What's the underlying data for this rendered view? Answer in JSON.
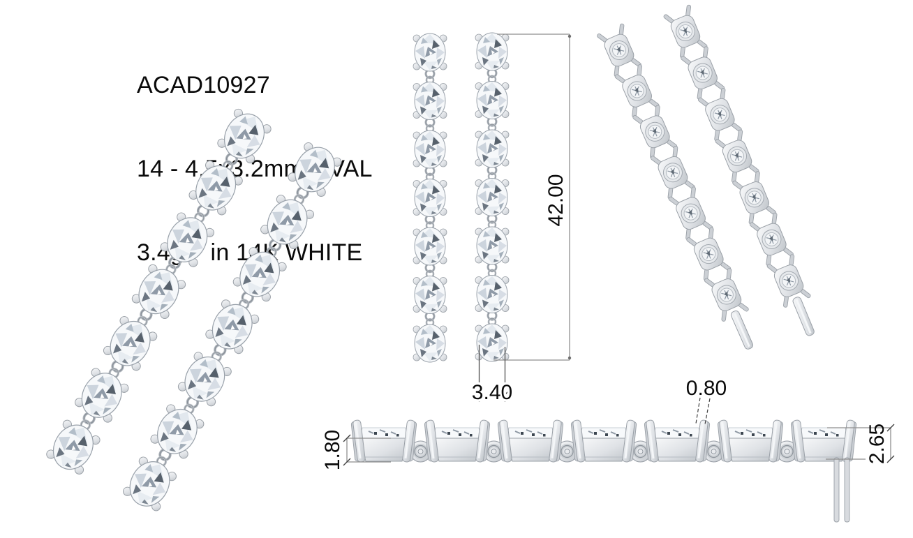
{
  "title_block": {
    "design_code": "ACAD10927",
    "stone_spec": "14 - 4.5x3.2mm OVAL",
    "weight_metal": "3.4gr.  in 14K WHITE"
  },
  "dimensions": {
    "overall_length_mm": "42.00",
    "bottom_stone_width_mm": "3.40",
    "basket_height_mm": "1.80",
    "prong_width_mm": "0.80",
    "setting_depth_mm": "2.65"
  },
  "views": {
    "stones_per_earring": 7,
    "earring_count": 2,
    "side_view": {
      "baskets": 7,
      "links": 6
    }
  },
  "colors": {
    "background": "#ffffff",
    "text": "#0a0a0a",
    "dimension_line": "#8e8e8e",
    "metal_light": "#f8f9fa",
    "metal_mid": "#dfe2e6",
    "metal_dark": "#a7adb4",
    "stone_facet": "#c7ced6",
    "stone_shadow": "#5c6670"
  }
}
